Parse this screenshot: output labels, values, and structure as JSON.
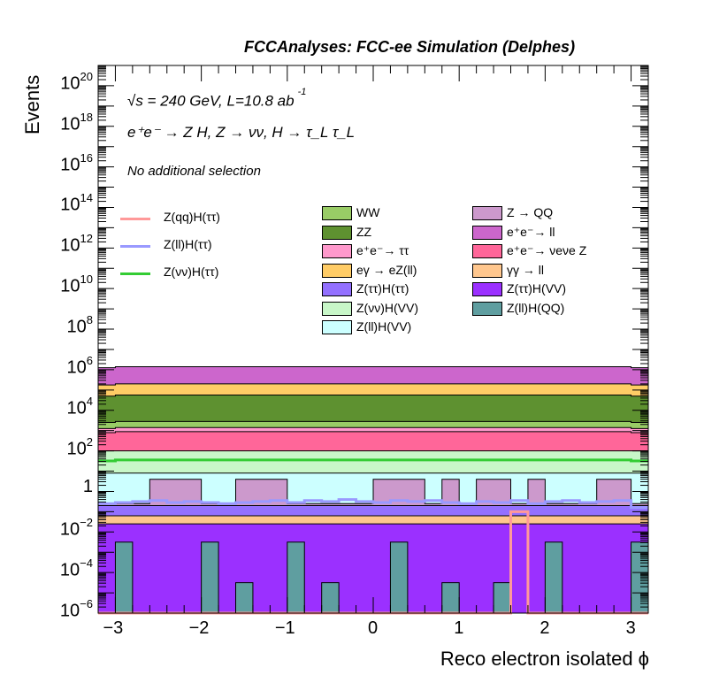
{
  "title": "FCCAnalyses: FCC-ee Simulation (Delphes)",
  "annotations": {
    "energy": "√s = 240 GeV, L=10.8 ab",
    "energy_exp": "-1",
    "process": "e⁺e⁻ → Z H, Z → νν, H → τ_L τ_L",
    "selection": "No additional selection"
  },
  "chart_data": {
    "type": "histogram-stacked",
    "title": "FCCAnalyses: FCC-ee Simulation (Delphes)",
    "xlabel": "Reco electron isolated ϕ",
    "ylabel": "Events",
    "xlim": [
      -3.2,
      3.2
    ],
    "ylim": [
      1e-06,
      1e+21
    ],
    "log_y": true,
    "grid": false,
    "legend_position": "upper-center",
    "bins": 32,
    "x_ticks": [
      "−3",
      "−2",
      "−1",
      "0",
      "1",
      "2",
      "3"
    ],
    "y_ticks": [
      {
        "base": "10",
        "exp": "−6"
      },
      {
        "base": "10",
        "exp": "−4"
      },
      {
        "base": "10",
        "exp": "−2"
      },
      {
        "base": "1",
        "exp": ""
      },
      {
        "base": "10",
        "exp": "2"
      },
      {
        "base": "10",
        "exp": "4"
      },
      {
        "base": "10",
        "exp": "6"
      },
      {
        "base": "10",
        "exp": "8"
      },
      {
        "base": "10",
        "exp": "10"
      },
      {
        "base": "10",
        "exp": "12"
      },
      {
        "base": "10",
        "exp": "14"
      },
      {
        "base": "10",
        "exp": "16"
      },
      {
        "base": "10",
        "exp": "18"
      },
      {
        "base": "10",
        "exp": "20"
      }
    ],
    "stack_cumulative_top_log10": [
      {
        "name": "Z(ll)H(QQ)",
        "color": "#5f9ea0",
        "values": [
          -6,
          -2.5,
          -6,
          -6,
          -6,
          -6,
          -2.5,
          -6,
          -4.5,
          -6,
          -6,
          -2.5,
          -6,
          -4.5,
          -6,
          -6,
          -6,
          -2.5,
          -6,
          -6,
          -4.5,
          -6,
          -6,
          -4.5,
          -6,
          -6,
          -2.5,
          -6,
          -6,
          -6,
          -6,
          -2.5
        ]
      },
      {
        "name": "Z(ττ)H(VV)",
        "color": "#9b30ff",
        "values": [
          -1.6,
          -1.6,
          -1.6,
          -1.6,
          -1.6,
          -1.6,
          -1.6,
          -1.6,
          -1.6,
          -1.6,
          -1.6,
          -1.6,
          -1.6,
          -1.6,
          -1.6,
          -1.6,
          -1.6,
          -1.6,
          -1.6,
          -1.6,
          -1.6,
          -1.6,
          -1.6,
          -1.6,
          -1.6,
          -1.6,
          -1.6,
          -1.6,
          -1.6,
          -1.6,
          -1.6,
          -1.6
        ]
      },
      {
        "name": "γγ → ll",
        "color": "#ffc78e",
        "values": [
          -1.2,
          -1.2,
          -1.2,
          -1.2,
          -1.2,
          -1.2,
          -1.2,
          -1.2,
          -1.2,
          -1.2,
          -1.2,
          -1.2,
          -1.2,
          -1.2,
          -1.2,
          -1.2,
          -1.2,
          -1.2,
          -1.2,
          -1.2,
          -1.2,
          -1.2,
          -1.2,
          -1.2,
          -1.2,
          -1.2,
          -1.2,
          -1.2,
          -1.2,
          -1.2,
          -1.2,
          -1.2
        ]
      },
      {
        "name": "Z(ττ)H(ττ)",
        "color": "#9370ff",
        "values": [
          -0.7,
          -0.7,
          -0.7,
          -0.7,
          -0.7,
          -0.7,
          -0.7,
          -0.7,
          -0.7,
          -0.7,
          -0.7,
          -0.7,
          -0.7,
          -0.7,
          -0.7,
          -0.7,
          -0.7,
          -0.7,
          -0.7,
          -0.7,
          -0.7,
          -0.7,
          -0.7,
          -0.7,
          -0.7,
          -0.7,
          -0.7,
          -0.7,
          -0.7,
          -0.7,
          -0.7,
          -0.7
        ]
      },
      {
        "name": "Z → QQ",
        "color": "#cc99cc",
        "values": [
          -0.6,
          -0.6,
          -0.6,
          0.6,
          0.6,
          0.6,
          -0.6,
          -0.6,
          0.6,
          0.6,
          0.6,
          -0.6,
          -0.6,
          -0.6,
          -0.6,
          -0.6,
          0.6,
          0.6,
          0.6,
          -0.6,
          0.6,
          -0.6,
          0.6,
          0.6,
          -0.6,
          0.6,
          -0.6,
          -0.6,
          -0.6,
          0.6,
          0.6,
          -0.6
        ]
      },
      {
        "name": "Z(ll)H(VV)",
        "color": "#ccffff",
        "values": [
          0.9,
          0.9,
          0.9,
          0.9,
          0.9,
          0.9,
          0.9,
          0.9,
          0.9,
          0.9,
          0.9,
          0.9,
          0.9,
          0.9,
          0.9,
          0.9,
          0.9,
          0.9,
          0.9,
          0.9,
          0.9,
          0.9,
          0.9,
          0.9,
          0.9,
          0.9,
          0.9,
          0.9,
          0.9,
          0.9,
          0.9,
          0.9
        ]
      },
      {
        "name": "Z(νν)H(VV)",
        "color": "#c8f7c8",
        "values": [
          2.0,
          2.0,
          2.0,
          2.0,
          2.0,
          2.0,
          2.0,
          2.0,
          2.0,
          2.0,
          2.0,
          2.0,
          2.0,
          2.0,
          2.0,
          2.0,
          2.0,
          2.0,
          2.0,
          2.0,
          2.0,
          2.0,
          2.0,
          2.0,
          2.0,
          2.0,
          2.0,
          2.0,
          2.0,
          2.0,
          2.0,
          2.0
        ]
      },
      {
        "name": "e⁺e⁻ → νeνe Z",
        "color": "#ff6699",
        "values": [
          2.9,
          2.95,
          2.95,
          2.95,
          2.95,
          2.95,
          2.95,
          2.95,
          2.95,
          2.95,
          2.95,
          2.95,
          2.95,
          2.95,
          2.95,
          2.95,
          2.95,
          2.95,
          2.95,
          2.95,
          2.95,
          2.95,
          2.95,
          2.95,
          2.95,
          2.95,
          2.95,
          2.95,
          2.95,
          2.95,
          2.95,
          2.9
        ]
      },
      {
        "name": "e⁺e⁻ → ττ",
        "color": "#ff99cc",
        "values": [
          3.1,
          3.15,
          3.15,
          3.15,
          3.15,
          3.15,
          3.15,
          3.15,
          3.15,
          3.15,
          3.15,
          3.15,
          3.15,
          3.15,
          3.15,
          3.15,
          3.15,
          3.15,
          3.15,
          3.15,
          3.15,
          3.15,
          3.15,
          3.15,
          3.15,
          3.15,
          3.15,
          3.15,
          3.15,
          3.15,
          3.15,
          3.1
        ]
      },
      {
        "name": "WW",
        "color": "#99cc66",
        "values": [
          3.4,
          3.45,
          3.45,
          3.45,
          3.45,
          3.45,
          3.45,
          3.45,
          3.45,
          3.45,
          3.45,
          3.45,
          3.45,
          3.45,
          3.45,
          3.45,
          3.45,
          3.45,
          3.45,
          3.45,
          3.45,
          3.45,
          3.45,
          3.45,
          3.45,
          3.45,
          3.45,
          3.45,
          3.45,
          3.45,
          3.45,
          3.4
        ]
      },
      {
        "name": "ZZ",
        "color": "#5e9130",
        "values": [
          4.7,
          4.75,
          4.75,
          4.75,
          4.75,
          4.75,
          4.75,
          4.75,
          4.75,
          4.75,
          4.75,
          4.75,
          4.75,
          4.75,
          4.75,
          4.75,
          4.75,
          4.75,
          4.75,
          4.75,
          4.75,
          4.75,
          4.75,
          4.75,
          4.75,
          4.75,
          4.75,
          4.75,
          4.75,
          4.75,
          4.75,
          4.7
        ]
      },
      {
        "name": "eγ → eZ(ll)",
        "color": "#ffcc66",
        "values": [
          5.25,
          5.3,
          5.3,
          5.3,
          5.3,
          5.3,
          5.3,
          5.3,
          5.3,
          5.3,
          5.3,
          5.3,
          5.3,
          5.3,
          5.3,
          5.3,
          5.3,
          5.3,
          5.3,
          5.3,
          5.3,
          5.3,
          5.3,
          5.3,
          5.3,
          5.3,
          5.3,
          5.3,
          5.3,
          5.3,
          5.3,
          5.25
        ]
      },
      {
        "name": "e⁺e⁻ → ll",
        "color": "#cc66cc",
        "values": [
          6.1,
          6.15,
          6.15,
          6.15,
          6.15,
          6.15,
          6.15,
          6.15,
          6.15,
          6.15,
          6.15,
          6.15,
          6.15,
          6.15,
          6.15,
          6.15,
          6.15,
          6.15,
          6.15,
          6.15,
          6.15,
          6.15,
          6.15,
          6.15,
          6.15,
          6.15,
          6.15,
          6.15,
          6.15,
          6.15,
          6.15,
          6.1
        ]
      }
    ],
    "signal_lines_log10": [
      {
        "name": "Z(νν)H(ττ)",
        "color": "#33cc33",
        "values": [
          1.5,
          1.55,
          1.55,
          1.55,
          1.55,
          1.55,
          1.55,
          1.55,
          1.55,
          1.55,
          1.55,
          1.55,
          1.55,
          1.55,
          1.55,
          1.55,
          1.55,
          1.55,
          1.55,
          1.55,
          1.55,
          1.55,
          1.55,
          1.55,
          1.55,
          1.55,
          1.55,
          1.55,
          1.55,
          1.55,
          1.55,
          1.5
        ]
      },
      {
        "name": "Z(ll)H(ττ)",
        "color": "#9999ff",
        "values": [
          -0.6,
          -0.55,
          -0.5,
          -0.45,
          -0.55,
          -0.5,
          -0.55,
          -0.6,
          -0.55,
          -0.5,
          -0.45,
          -0.55,
          -0.45,
          -0.5,
          -0.4,
          -0.5,
          -0.55,
          -0.45,
          -0.5,
          -0.45,
          -0.55,
          -0.6,
          -0.5,
          -0.55,
          -0.45,
          -0.6,
          -0.5,
          -0.45,
          -0.55,
          -0.5,
          -0.45,
          -0.8
        ]
      },
      {
        "name": "Z(qq)H(ττ)",
        "color": "#ff9999",
        "values": [
          -6,
          -6,
          -6,
          -6,
          -6,
          -6,
          -6,
          -6,
          -6,
          -6,
          -6,
          -6,
          -6,
          -6,
          -6,
          -6,
          -6,
          -6,
          -6,
          -6,
          -6,
          -6,
          -6,
          -6,
          -1.0,
          -6,
          -6,
          -6,
          -6,
          -6,
          -6,
          -6
        ]
      }
    ],
    "legend_left": [
      "Z(qq)H(ττ)",
      "Z(ll)H(ττ)",
      "Z(νν)H(ττ)"
    ],
    "legend_mid": [
      "WW",
      "ZZ",
      "e⁺e⁻→ ττ",
      "eγ → eZ(ll)",
      "Z(ττ)H(ττ)",
      "Z(νν)H(VV)",
      "Z(ll)H(VV)"
    ],
    "legend_right": [
      "Z → QQ",
      "e⁺e⁻→ ll",
      "e⁺e⁻→ νeνe Z",
      "γγ → ll",
      "Z(ττ)H(VV)",
      "Z(ll)H(QQ)"
    ]
  }
}
